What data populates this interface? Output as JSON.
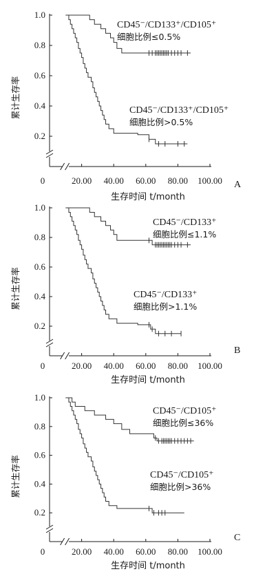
{
  "chart_data": [
    {
      "panel": "A",
      "type": "line",
      "xlabel": "生存时间 t/month",
      "ylabel": "累计生存率",
      "x_ticks": [
        "0",
        "20.00",
        "40.00",
        "60.00",
        "80.00",
        "100.00"
      ],
      "y_ticks": [
        "0.2",
        "0.4",
        "0.6",
        "0.8",
        "1.0"
      ],
      "xlim": [
        0,
        100
      ],
      "ylim": [
        0,
        1.0
      ],
      "series": [
        {
          "name": "CD45⁻/CD133⁺/CD105⁺ 细胞比例≤0.5%",
          "label_line1": "CD45⁻/CD133⁺/CD105⁺",
          "label_line2": "细胞比例≤0.5%",
          "steps": [
            [
              12,
              1.0
            ],
            [
              25,
              0.97
            ],
            [
              28,
              0.94
            ],
            [
              32,
              0.91
            ],
            [
              35,
              0.88
            ],
            [
              38,
              0.85
            ],
            [
              40,
              0.82
            ],
            [
              42,
              0.78
            ],
            [
              45,
              0.75
            ]
          ],
          "end_x": 88,
          "censored": [
            62,
            64,
            66,
            67,
            68,
            69,
            70,
            71,
            72,
            73,
            74,
            76,
            78,
            80,
            82,
            86
          ]
        },
        {
          "name": "CD45⁻/CD133⁺/CD105⁺ 细胞比例>0.5%",
          "label_line1": "CD45⁻/CD133⁺/CD105⁺",
          "label_line2": "细胞比例>0.5%",
          "steps": [
            [
              12,
              0.97
            ],
            [
              13,
              0.94
            ],
            [
              14,
              0.91
            ],
            [
              15,
              0.88
            ],
            [
              16,
              0.85
            ],
            [
              17,
              0.82
            ],
            [
              18,
              0.78
            ],
            [
              19,
              0.75
            ],
            [
              20,
              0.72
            ],
            [
              21,
              0.68
            ],
            [
              22,
              0.65
            ],
            [
              23,
              0.62
            ],
            [
              24,
              0.59
            ],
            [
              26,
              0.56
            ],
            [
              27,
              0.52
            ],
            [
              28,
              0.49
            ],
            [
              29,
              0.46
            ],
            [
              30,
              0.43
            ],
            [
              31,
              0.4
            ],
            [
              32,
              0.37
            ],
            [
              33,
              0.34
            ],
            [
              34,
              0.31
            ],
            [
              35,
              0.28
            ],
            [
              37,
              0.25
            ],
            [
              40,
              0.22
            ],
            [
              55,
              0.21
            ],
            [
              62,
              0.18
            ],
            [
              66,
              0.15
            ]
          ],
          "start": [
            10,
            1.0
          ],
          "end_x": 86,
          "censored": [
            62,
            68,
            72,
            80,
            84
          ]
        }
      ]
    },
    {
      "panel": "B",
      "type": "line",
      "xlabel": "生存时间 t/month",
      "ylabel": "累计生存率",
      "x_ticks": [
        "0",
        "20.00",
        "40.00",
        "60.00",
        "80.00",
        "100.00"
      ],
      "y_ticks": [
        "0.2",
        "0.4",
        "0.6",
        "0.8",
        "1.0"
      ],
      "xlim": [
        0,
        100
      ],
      "ylim": [
        0,
        1.0
      ],
      "series": [
        {
          "name": "CD45⁻/CD133⁺ 细胞比例≤1.1%",
          "label_line1": "CD45⁻/CD133⁺",
          "label_line2": "细胞比例≤1.1%",
          "steps": [
            [
              12,
              1.0
            ],
            [
              25,
              0.97
            ],
            [
              28,
              0.94
            ],
            [
              32,
              0.91
            ],
            [
              35,
              0.88
            ],
            [
              38,
              0.85
            ],
            [
              40,
              0.82
            ],
            [
              42,
              0.78
            ],
            [
              64,
              0.75
            ]
          ],
          "end_x": 88,
          "censored": [
            62,
            66,
            67,
            68,
            69,
            70,
            71,
            72,
            73,
            74,
            75,
            76,
            78,
            80,
            82,
            86
          ]
        },
        {
          "name": "CD45⁻/CD133⁺ 细胞比例>1.1%",
          "label_line1": "CD45⁻/CD133⁺",
          "label_line2": "细胞比例>1.1%",
          "steps": [
            [
              12,
              0.97
            ],
            [
              13,
              0.94
            ],
            [
              14,
              0.91
            ],
            [
              15,
              0.88
            ],
            [
              16,
              0.85
            ],
            [
              17,
              0.82
            ],
            [
              18,
              0.78
            ],
            [
              19,
              0.75
            ],
            [
              20,
              0.72
            ],
            [
              21,
              0.68
            ],
            [
              22,
              0.65
            ],
            [
              23,
              0.62
            ],
            [
              24,
              0.59
            ],
            [
              26,
              0.56
            ],
            [
              27,
              0.52
            ],
            [
              28,
              0.49
            ],
            [
              29,
              0.46
            ],
            [
              30,
              0.43
            ],
            [
              31,
              0.4
            ],
            [
              32,
              0.37
            ],
            [
              33,
              0.34
            ],
            [
              34,
              0.31
            ],
            [
              35,
              0.28
            ],
            [
              37,
              0.25
            ],
            [
              42,
              0.22
            ],
            [
              55,
              0.21
            ],
            [
              63,
              0.18
            ],
            [
              66,
              0.15
            ]
          ],
          "start": [
            10,
            1.0
          ],
          "end_x": 82,
          "censored": [
            62,
            64,
            68,
            72,
            76,
            82
          ]
        }
      ]
    },
    {
      "panel": "C",
      "type": "line",
      "xlabel": "生存时间 t/month",
      "ylabel": "累计生存率",
      "x_ticks": [
        "0",
        "20.00",
        "40.00",
        "60.00",
        "80.00",
        "100.00"
      ],
      "y_ticks": [
        "0.2",
        "0.4",
        "0.6",
        "0.8",
        "1.0"
      ],
      "xlim": [
        0,
        100
      ],
      "ylim": [
        0,
        1.0
      ],
      "series": [
        {
          "name": "CD45⁻/CD105⁺ 细胞比例≤36%",
          "label_line1": "CD45⁻/CD105⁺",
          "label_line2": "细胞比例≤36%",
          "steps": [
            [
              14,
              0.97
            ],
            [
              16,
              0.94
            ],
            [
              22,
              0.91
            ],
            [
              28,
              0.88
            ],
            [
              35,
              0.85
            ],
            [
              40,
              0.82
            ],
            [
              45,
              0.78
            ],
            [
              50,
              0.75
            ],
            [
              65,
              0.72
            ],
            [
              67,
              0.7
            ]
          ],
          "start": [
            12,
            1.0
          ],
          "end_x": 90,
          "censored": [
            66,
            68,
            70,
            71,
            72,
            73,
            74,
            75,
            76,
            78,
            80,
            82,
            84,
            86,
            88
          ]
        },
        {
          "name": "CD45⁻/CD105⁺ 细胞比例>36%",
          "label_line1": "CD45⁻/CD105⁺",
          "label_line2": "细胞比例>36%",
          "steps": [
            [
              12,
              0.97
            ],
            [
              13,
              0.94
            ],
            [
              14,
              0.91
            ],
            [
              15,
              0.88
            ],
            [
              16,
              0.85
            ],
            [
              17,
              0.82
            ],
            [
              18,
              0.78
            ],
            [
              19,
              0.75
            ],
            [
              20,
              0.72
            ],
            [
              21,
              0.68
            ],
            [
              22,
              0.65
            ],
            [
              23,
              0.62
            ],
            [
              24,
              0.59
            ],
            [
              26,
              0.56
            ],
            [
              27,
              0.52
            ],
            [
              28,
              0.49
            ],
            [
              29,
              0.46
            ],
            [
              30,
              0.43
            ],
            [
              31,
              0.4
            ],
            [
              32,
              0.37
            ],
            [
              33,
              0.34
            ],
            [
              34,
              0.31
            ],
            [
              35,
              0.28
            ],
            [
              37,
              0.25
            ],
            [
              42,
              0.23
            ],
            [
              64,
              0.2
            ]
          ],
          "start": [
            10,
            1.0
          ],
          "end_x": 84,
          "censored": [
            62,
            65,
            68,
            70,
            72
          ]
        }
      ]
    }
  ]
}
